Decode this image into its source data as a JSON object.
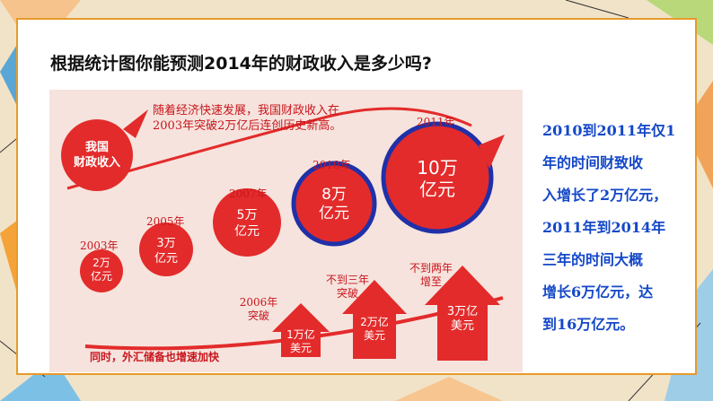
{
  "question": "根据统计图你能预测2014年的财政收入是多少吗?",
  "headline_lines": [
    "随着经济快速发展，我国财政收入在",
    "2003年突破2万亿后连创历史新高。"
  ],
  "title_badge_lines": [
    "我国",
    "财政收入"
  ],
  "revenue_items": [
    {
      "year": "2003年",
      "line1": "2万",
      "line2": "亿元"
    },
    {
      "year": "2005年",
      "line1": "3万",
      "line2": "亿元"
    },
    {
      "year": "2007年",
      "line1": "5万",
      "line2": "亿元"
    },
    {
      "year": "2010年",
      "line1": "8万",
      "line2": "亿元"
    },
    {
      "year": "2011年",
      "line1": "10万",
      "line2": "亿元"
    }
  ],
  "reserve_labels": [
    {
      "caption1": "2006年",
      "caption2": "突破",
      "line1": "1万亿",
      "line2": "美元"
    },
    {
      "caption1": "不到三年",
      "caption2": "突破",
      "line1": "2万亿",
      "line2": "美元"
    },
    {
      "caption1": "不到两年",
      "caption2": "增至",
      "line1": "3万亿",
      "line2": "美元"
    }
  ],
  "reserve_note": "同时，外汇储备也增速加快",
  "side_note_lines": [
    "2010到2011年仅1",
    "年的时间财致收",
    "入增长了2万亿元，",
    "2011年到2014年",
    "三年的时间大概",
    "增长6万亿元，达",
    "到16万亿元。"
  ],
  "colors": {
    "red": "#e32b2b",
    "dark_red": "#c8161d",
    "blue_ring": "#2030a8",
    "blue_text": "#1448c8",
    "orange_border": "#e79a2a",
    "panel_bg": "#f6e3dd"
  }
}
